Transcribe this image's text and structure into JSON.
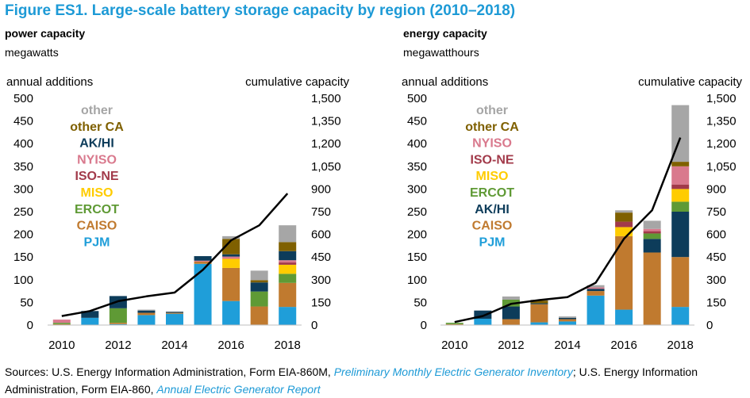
{
  "figure_title": "Figure ES1. Large-scale battery storage capacity by region (2010–2018)",
  "colors": {
    "title": "#1d9ad6",
    "other": "#a6a6a6",
    "other CA": "#7f6000",
    "AK/HI": "#0d3c5a",
    "NYISO": "#d9798d",
    "ISO-NE": "#a23a4a",
    "MISO": "#ffcc00",
    "ERCOT": "#5f9a35",
    "CAISO": "#c07a2f",
    "PJM": "#1f9ed9",
    "cumulative": "#000000"
  },
  "chart_data": [
    {
      "type": "bar",
      "stacked": true,
      "title": "power capacity",
      "unit": "megawatts",
      "left_axis_label": "annual additions",
      "right_axis_label": "cumulative capacity",
      "categories": [
        "2010",
        "2011",
        "2012",
        "2013",
        "2014",
        "2015",
        "2016",
        "2017",
        "2018"
      ],
      "x_tick_labels": [
        "2010",
        "2012",
        "2014",
        "2016",
        "2018"
      ],
      "ylim_left": [
        0,
        500
      ],
      "ylim_right": [
        0,
        1500
      ],
      "y_ticks_left": [
        "0",
        "50",
        "100",
        "150",
        "200",
        "250",
        "300",
        "350",
        "400",
        "450",
        "500"
      ],
      "y_ticks_right": [
        "0",
        "150",
        "300",
        "450",
        "600",
        "750",
        "900",
        "1,050",
        "1,200",
        "1,350",
        "1,500"
      ],
      "legend": [
        "other",
        "other CA",
        "AK/HI",
        "NYISO",
        "ISO-NE",
        "MISO",
        "ERCOT",
        "CAISO",
        "PJM"
      ],
      "series": [
        {
          "name": "PJM",
          "values": [
            0,
            16,
            2,
            22,
            25,
            135,
            53,
            1,
            40
          ]
        },
        {
          "name": "CAISO",
          "values": [
            2,
            0,
            3,
            5,
            2,
            5,
            73,
            40,
            53
          ]
        },
        {
          "name": "ERCOT",
          "values": [
            3,
            0,
            32,
            0,
            0,
            0,
            0,
            33,
            20
          ]
        },
        {
          "name": "MISO",
          "values": [
            0,
            0,
            0,
            0,
            0,
            0,
            20,
            0,
            20
          ]
        },
        {
          "name": "ISO-NE",
          "values": [
            0,
            0,
            0,
            0,
            0,
            0,
            0,
            0,
            5
          ]
        },
        {
          "name": "NYISO",
          "values": [
            7,
            0,
            0,
            0,
            0,
            2,
            5,
            0,
            5
          ]
        },
        {
          "name": "AK/HI",
          "values": [
            0,
            15,
            27,
            5,
            2,
            10,
            5,
            20,
            20
          ]
        },
        {
          "name": "other CA",
          "values": [
            0,
            0,
            0,
            0,
            0,
            0,
            34,
            5,
            20
          ]
        },
        {
          "name": "other",
          "values": [
            0,
            0,
            0,
            2,
            1,
            0,
            6,
            21,
            37
          ]
        }
      ],
      "cumulative": [
        60,
        93,
        158,
        190,
        215,
        365,
        560,
        660,
        870
      ]
    },
    {
      "type": "bar",
      "stacked": true,
      "title": "energy capacity",
      "unit": "megawatthours",
      "left_axis_label": "annual additions",
      "right_axis_label": "cumulative capacity",
      "categories": [
        "2010",
        "2011",
        "2012",
        "2013",
        "2014",
        "2015",
        "2016",
        "2017",
        "2018"
      ],
      "x_tick_labels": [
        "2010",
        "2012",
        "2014",
        "2016",
        "2018"
      ],
      "ylim_left": [
        0,
        500
      ],
      "ylim_right": [
        0,
        1500
      ],
      "y_ticks_left": [
        "0",
        "50",
        "100",
        "150",
        "200",
        "250",
        "300",
        "350",
        "400",
        "450",
        "500"
      ],
      "y_ticks_right": [
        "0",
        "150",
        "300",
        "450",
        "600",
        "750",
        "900",
        "1,050",
        "1,200",
        "1,350",
        "1,500"
      ],
      "legend": [
        "other",
        "other CA",
        "NYISO",
        "ISO-NE",
        "MISO",
        "ERCOT",
        "AK/HI",
        "CAISO",
        "PJM"
      ],
      "series": [
        {
          "name": "PJM",
          "values": [
            0,
            14,
            0,
            6,
            8,
            65,
            34,
            0,
            40
          ]
        },
        {
          "name": "CAISO",
          "values": [
            2,
            0,
            13,
            40,
            5,
            10,
            162,
            160,
            110
          ]
        },
        {
          "name": "AK/HI",
          "values": [
            0,
            18,
            28,
            2,
            3,
            5,
            0,
            30,
            100
          ]
        },
        {
          "name": "ERCOT",
          "values": [
            3,
            0,
            15,
            0,
            0,
            0,
            0,
            12,
            22
          ]
        },
        {
          "name": "MISO",
          "values": [
            0,
            0,
            0,
            0,
            0,
            0,
            20,
            0,
            28
          ]
        },
        {
          "name": "ISO-NE",
          "values": [
            0,
            0,
            0,
            0,
            0,
            0,
            12,
            5,
            10
          ]
        },
        {
          "name": "NYISO",
          "values": [
            0,
            0,
            0,
            0,
            0,
            3,
            0,
            5,
            40
          ]
        },
        {
          "name": "other CA",
          "values": [
            0,
            0,
            0,
            6,
            0,
            0,
            20,
            0,
            10
          ]
        },
        {
          "name": "other",
          "values": [
            0,
            0,
            7,
            2,
            3,
            5,
            5,
            18,
            125
          ]
        }
      ],
      "cumulative": [
        20,
        60,
        140,
        165,
        185,
        280,
        570,
        760,
        1240
      ]
    }
  ],
  "sources": {
    "prefix": "Sources: U.S. Energy Information Administration, Form EIA-860M, ",
    "link1": "Preliminary Monthly Electric Generator Inventory",
    "middle": "; U.S. Energy Information Administration, Form EIA-860, ",
    "link2": "Annual Electric Generator Report"
  }
}
